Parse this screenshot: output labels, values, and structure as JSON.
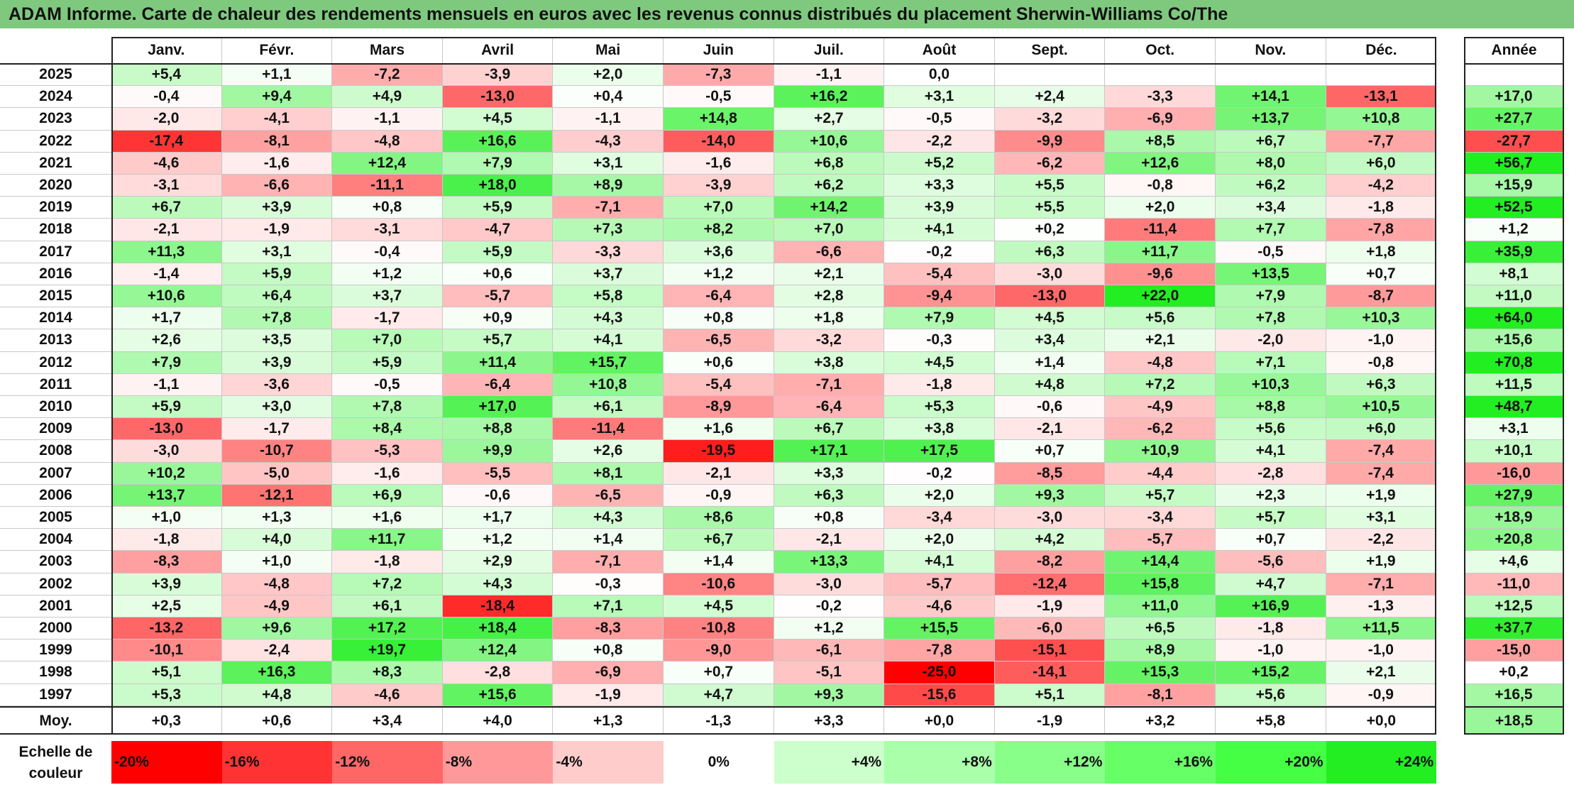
{
  "title": "ADAM Informe. Carte de chaleur des rendements mensuels en euros avec les revenus connus distribués du placement Sherwin-Williams Co/The",
  "chart_data": {
    "type": "heatmap",
    "columns": [
      "Janv.",
      "Févr.",
      "Mars",
      "Avril",
      "Mai",
      "Juin",
      "Juil.",
      "Août",
      "Sept.",
      "Oct.",
      "Nov.",
      "Déc."
    ],
    "annual_header": "Année",
    "rows": [
      {
        "year": "2025",
        "values": [
          "+5,4",
          "+1,1",
          "-7,2",
          "-3,9",
          "+2,0",
          "-7,3",
          "-1,1",
          "0,0",
          "",
          "",
          "",
          ""
        ],
        "annual": ""
      },
      {
        "year": "2024",
        "values": [
          "-0,4",
          "+9,4",
          "+4,9",
          "-13,0",
          "+0,4",
          "-0,5",
          "+16,2",
          "+3,1",
          "+2,4",
          "-3,3",
          "+14,1",
          "-13,1"
        ],
        "annual": "+17,0"
      },
      {
        "year": "2023",
        "values": [
          "-2,0",
          "-4,1",
          "-1,1",
          "+4,5",
          "-1,1",
          "+14,8",
          "+2,7",
          "-0,5",
          "-3,2",
          "-6,9",
          "+13,7",
          "+10,8"
        ],
        "annual": "+27,7"
      },
      {
        "year": "2022",
        "values": [
          "-17,4",
          "-8,1",
          "-4,8",
          "+16,6",
          "-4,3",
          "-14,0",
          "+10,6",
          "-2,2",
          "-9,9",
          "+8,5",
          "+6,7",
          "-7,7"
        ],
        "annual": "-27,7"
      },
      {
        "year": "2021",
        "values": [
          "-4,6",
          "-1,6",
          "+12,4",
          "+7,9",
          "+3,1",
          "-1,6",
          "+6,8",
          "+5,2",
          "-6,2",
          "+12,6",
          "+8,0",
          "+6,0"
        ],
        "annual": "+56,7"
      },
      {
        "year": "2020",
        "values": [
          "-3,1",
          "-6,6",
          "-11,1",
          "+18,0",
          "+8,9",
          "-3,9",
          "+6,2",
          "+3,3",
          "+5,5",
          "-0,8",
          "+6,2",
          "-4,2"
        ],
        "annual": "+15,9"
      },
      {
        "year": "2019",
        "values": [
          "+6,7",
          "+3,9",
          "+0,8",
          "+5,9",
          "-7,1",
          "+7,0",
          "+14,2",
          "+3,9",
          "+5,5",
          "+2,0",
          "+3,4",
          "-1,8"
        ],
        "annual": "+52,5"
      },
      {
        "year": "2018",
        "values": [
          "-2,1",
          "-1,9",
          "-3,1",
          "-4,7",
          "+7,3",
          "+8,2",
          "+7,0",
          "+4,1",
          "+0,2",
          "-11,4",
          "+7,7",
          "-7,8"
        ],
        "annual": "+1,2"
      },
      {
        "year": "2017",
        "values": [
          "+11,3",
          "+3,1",
          "-0,4",
          "+5,9",
          "-3,3",
          "+3,6",
          "-6,6",
          "-0,2",
          "+6,3",
          "+11,7",
          "-0,5",
          "+1,8"
        ],
        "annual": "+35,9"
      },
      {
        "year": "2016",
        "values": [
          "-1,4",
          "+5,9",
          "+1,2",
          "+0,6",
          "+3,7",
          "+1,2",
          "+2,1",
          "-5,4",
          "-3,0",
          "-9,6",
          "+13,5",
          "+0,7"
        ],
        "annual": "+8,1"
      },
      {
        "year": "2015",
        "values": [
          "+10,6",
          "+6,4",
          "+3,7",
          "-5,7",
          "+5,8",
          "-6,4",
          "+2,8",
          "-9,4",
          "-13,0",
          "+22,0",
          "+7,9",
          "-8,7"
        ],
        "annual": "+11,0"
      },
      {
        "year": "2014",
        "values": [
          "+1,7",
          "+7,8",
          "-1,7",
          "+0,9",
          "+4,3",
          "+0,8",
          "+1,8",
          "+7,9",
          "+4,5",
          "+5,6",
          "+7,8",
          "+10,3"
        ],
        "annual": "+64,0"
      },
      {
        "year": "2013",
        "values": [
          "+2,6",
          "+3,5",
          "+7,0",
          "+5,7",
          "+4,1",
          "-6,5",
          "-3,2",
          "-0,3",
          "+3,4",
          "+2,1",
          "-2,0",
          "-1,0"
        ],
        "annual": "+15,6"
      },
      {
        "year": "2012",
        "values": [
          "+7,9",
          "+3,9",
          "+5,9",
          "+11,4",
          "+15,7",
          "+0,6",
          "+3,8",
          "+4,5",
          "+1,4",
          "-4,8",
          "+7,1",
          "-0,8"
        ],
        "annual": "+70,8"
      },
      {
        "year": "2011",
        "values": [
          "-1,1",
          "-3,6",
          "-0,5",
          "-6,4",
          "+10,8",
          "-5,4",
          "-7,1",
          "-1,8",
          "+4,8",
          "+7,2",
          "+10,3",
          "+6,3"
        ],
        "annual": "+11,5"
      },
      {
        "year": "2010",
        "values": [
          "+5,9",
          "+3,0",
          "+7,8",
          "+17,0",
          "+6,1",
          "-8,9",
          "-6,4",
          "+5,3",
          "-0,6",
          "-4,9",
          "+8,8",
          "+10,5"
        ],
        "annual": "+48,7"
      },
      {
        "year": "2009",
        "values": [
          "-13,0",
          "-1,7",
          "+8,4",
          "+8,8",
          "-11,4",
          "+1,6",
          "+6,7",
          "+3,8",
          "-2,1",
          "-6,2",
          "+5,6",
          "+6,0"
        ],
        "annual": "+3,1"
      },
      {
        "year": "2008",
        "values": [
          "-3,0",
          "-10,7",
          "-5,3",
          "+9,9",
          "+2,6",
          "-19,5",
          "+17,1",
          "+17,5",
          "+0,7",
          "+10,9",
          "+4,1",
          "-7,4"
        ],
        "annual": "+10,1"
      },
      {
        "year": "2007",
        "values": [
          "+10,2",
          "-5,0",
          "-1,6",
          "-5,5",
          "+8,1",
          "-2,1",
          "+3,3",
          "-0,2",
          "-8,5",
          "-4,4",
          "-2,8",
          "-7,4"
        ],
        "annual": "-16,0"
      },
      {
        "year": "2006",
        "values": [
          "+13,7",
          "-12,1",
          "+6,9",
          "-0,6",
          "-6,5",
          "-0,9",
          "+6,3",
          "+2,0",
          "+9,3",
          "+5,7",
          "+2,3",
          "+1,9"
        ],
        "annual": "+27,9"
      },
      {
        "year": "2005",
        "values": [
          "+1,0",
          "+1,3",
          "+1,6",
          "+1,7",
          "+4,3",
          "+8,6",
          "+0,8",
          "-3,4",
          "-3,0",
          "-3,4",
          "+5,7",
          "+3,1"
        ],
        "annual": "+18,9"
      },
      {
        "year": "2004",
        "values": [
          "-1,8",
          "+4,0",
          "+11,7",
          "+1,2",
          "+1,4",
          "+6,7",
          "-2,1",
          "+2,0",
          "+4,2",
          "-5,7",
          "+0,7",
          "-2,2"
        ],
        "annual": "+20,8"
      },
      {
        "year": "2003",
        "values": [
          "-8,3",
          "+1,0",
          "-1,8",
          "+2,9",
          "-7,1",
          "+1,4",
          "+13,3",
          "+4,1",
          "-8,2",
          "+14,4",
          "-5,6",
          "+1,9"
        ],
        "annual": "+4,6"
      },
      {
        "year": "2002",
        "values": [
          "+3,9",
          "-4,8",
          "+7,2",
          "+4,3",
          "-0,3",
          "-10,6",
          "-3,0",
          "-5,7",
          "-12,4",
          "+15,8",
          "+4,7",
          "-7,1"
        ],
        "annual": "-11,0"
      },
      {
        "year": "2001",
        "values": [
          "+2,5",
          "-4,9",
          "+6,1",
          "-18,4",
          "+7,1",
          "+4,5",
          "-0,2",
          "-4,6",
          "-1,9",
          "+11,0",
          "+16,9",
          "-1,3"
        ],
        "annual": "+12,5"
      },
      {
        "year": "2000",
        "values": [
          "-13,2",
          "+9,6",
          "+17,2",
          "+18,4",
          "-8,3",
          "-10,8",
          "+1,2",
          "+15,5",
          "-6,0",
          "+6,5",
          "-1,8",
          "+11,5"
        ],
        "annual": "+37,7"
      },
      {
        "year": "1999",
        "values": [
          "-10,1",
          "-2,4",
          "+19,7",
          "+12,4",
          "+0,8",
          "-9,0",
          "-6,1",
          "-7,8",
          "-15,1",
          "+8,9",
          "-1,0",
          "-1,0"
        ],
        "annual": "-15,0"
      },
      {
        "year": "1998",
        "values": [
          "+5,1",
          "+16,3",
          "+8,3",
          "-2,8",
          "-6,9",
          "+0,7",
          "-5,1",
          "-25,0",
          "-14,1",
          "+15,3",
          "+15,2",
          "+2,1"
        ],
        "annual": "+0,2"
      },
      {
        "year": "1997",
        "values": [
          "+5,3",
          "+4,8",
          "-4,6",
          "+15,6",
          "-1,9",
          "+4,7",
          "+9,3",
          "-15,6",
          "+5,1",
          "-8,1",
          "+5,6",
          "-0,9"
        ],
        "annual": "+16,5"
      }
    ],
    "average": {
      "label": "Moy.",
      "values": [
        "+0,3",
        "+0,6",
        "+3,4",
        "+4,0",
        "+1,3",
        "-1,3",
        "+3,3",
        "+0,0",
        "-1,9",
        "+3,2",
        "+5,8",
        "+0,0"
      ],
      "annual": "+18,5"
    },
    "color_scale": {
      "label": "Echelle de couleur",
      "steps": [
        {
          "label": "-20%",
          "color": "#ff0000",
          "align": "left"
        },
        {
          "label": "-16%",
          "color": "#ff3333",
          "align": "left"
        },
        {
          "label": "-12%",
          "color": "#ff6666",
          "align": "left"
        },
        {
          "label": "-8%",
          "color": "#ff9999",
          "align": "left"
        },
        {
          "label": "-4%",
          "color": "#ffcccc",
          "align": "left"
        },
        {
          "label": "0%",
          "color": "#ffffff",
          "align": "center"
        },
        {
          "label": "+4%",
          "color": "#ccffcc",
          "align": "right"
        },
        {
          "label": "+8%",
          "color": "#aaffaa",
          "align": "right"
        },
        {
          "label": "+12%",
          "color": "#88ff88",
          "align": "right"
        },
        {
          "label": "+16%",
          "color": "#66ff66",
          "align": "right"
        },
        {
          "label": "+20%",
          "color": "#44ff44",
          "align": "right"
        },
        {
          "label": "+24%",
          "color": "#22ee22",
          "align": "right"
        }
      ]
    }
  }
}
